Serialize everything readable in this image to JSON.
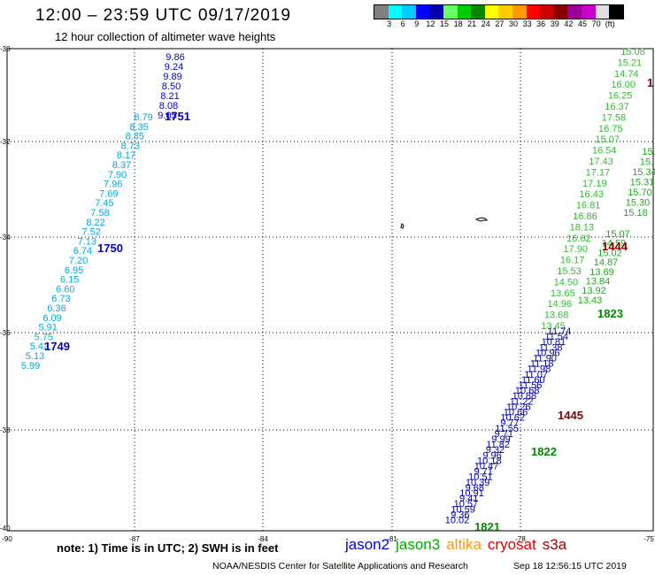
{
  "header": {
    "title": "12:00 – 23:59 UTC 09/17/2019",
    "subtitle": "12 hour collection of altimeter wave heights"
  },
  "colorbar": {
    "colors": [
      "#808080",
      "#00ffff",
      "#00ccff",
      "#0000ff",
      "#0000aa",
      "#66ff66",
      "#00cc00",
      "#008800",
      "#ffff00",
      "#ffcc00",
      "#ff9900",
      "#ff0000",
      "#cc0000",
      "#880000",
      "#990099",
      "#cc00cc",
      "#e0e0e0",
      "#000000"
    ],
    "labels": [
      "3",
      "6",
      "9",
      "12",
      "15",
      "18",
      "21",
      "24",
      "27",
      "30",
      "33",
      "36",
      "39",
      "42",
      "45",
      "70",
      "(ft)"
    ]
  },
  "axes": {
    "lat_labels": [
      "-30",
      "-32",
      "-34",
      "-36",
      "-38",
      "-40"
    ],
    "lon_labels": [
      "-90",
      "-87",
      "-84",
      "-81",
      "-78",
      "-75"
    ]
  },
  "tracks": [
    {
      "name": "jason2-1751",
      "color": "#0000cc",
      "values": [
        "9.86",
        "9.24",
        "9.89",
        "8.50",
        "8.21",
        "8.08",
        "9.05"
      ]
    },
    {
      "name": "jason2-1750",
      "color": "#00aadd",
      "values": [
        "8.79",
        "8.35",
        "8.85",
        "8.73",
        "8.17",
        "8.37",
        "7.90",
        "7.96",
        "7.69",
        "7.45",
        "7.58",
        "8.22",
        "7.52",
        "7.13",
        "6.74",
        "7.20",
        "6.95",
        "6.15",
        "6.60",
        "6.73",
        "6.36",
        "6.09",
        "5.91",
        "5.75",
        "5.42",
        "5.13",
        "5.99"
      ]
    },
    {
      "name": "jason3-1823",
      "color": "#33bb33",
      "values": [
        "15.08",
        "15.21",
        "14.74",
        "16.00",
        "16.25",
        "16.37",
        "17.58",
        "16.75",
        "15.07",
        "16.54",
        "17.43",
        "17.17",
        "17.19",
        "16.43",
        "16.81",
        "16.86",
        "18.13",
        "16.62",
        "17.90",
        "16.17",
        "15.53",
        "14.50",
        "13.65",
        "14.96",
        "13.68",
        "13.45"
      ]
    },
    {
      "name": "jason3-right",
      "color": "#22aa22",
      "values": [
        "15.07",
        "14.59",
        "15.02",
        "14.87",
        "13.69",
        "13.84",
        "13.92",
        "13.43"
      ]
    },
    {
      "name": "jason3-edge",
      "color": "#22aa22",
      "values": [
        "15.",
        "15.",
        "15.34",
        "15.31",
        "15.70",
        "15.30",
        "15.18"
      ]
    },
    {
      "name": "jason2-1822",
      "color": "#0000aa",
      "values": [
        "11.74",
        "11.54",
        "10.81",
        "11.38",
        "10.96",
        "11.90",
        "11.18",
        "11.98",
        "11.07",
        "11.60",
        "11.56",
        "10.68",
        "10.88",
        "11.22",
        "10.26",
        "10.66",
        "10.62",
        "9.77",
        "11.55",
        "9.71",
        "9.99",
        "11.82",
        "9.32",
        "9.96",
        "10.18",
        "10.47",
        "9.71",
        "10.51",
        "10.39",
        "9.68",
        "10.91",
        "9.41",
        "10.57",
        "10.59",
        "9.36",
        "10.02"
      ]
    }
  ],
  "time_labels": [
    {
      "text": "1751",
      "color": "#0000cc"
    },
    {
      "text": "1750",
      "color": "#0000cc"
    },
    {
      "text": "1749",
      "color": "#0000cc"
    },
    {
      "text": "1444",
      "color": "#880000"
    },
    {
      "text": "1823",
      "color": "#008800"
    },
    {
      "text": "1445",
      "color": "#880000"
    },
    {
      "text": "1822",
      "color": "#008800"
    },
    {
      "text": "1821",
      "color": "#008800"
    },
    {
      "text": "1",
      "color": "#880000"
    }
  ],
  "note": "note:  1) Time is in UTC;  2) SWH is in feet",
  "legend": [
    {
      "text": "jason2",
      "color": "#0000dd"
    },
    {
      "text": "jason3",
      "color": "#00aa00"
    },
    {
      "text": "altika",
      "color": "#ff9900"
    },
    {
      "text": "cryosat",
      "color": "#dd0000"
    },
    {
      "text": "s3a",
      "color": "#aa0000"
    }
  ],
  "footer": {
    "credit": "NOAA/NESDIS Center for Satellite Applications and Research",
    "timestamp": "Sep 18 12:56:15 UTC 2019"
  }
}
